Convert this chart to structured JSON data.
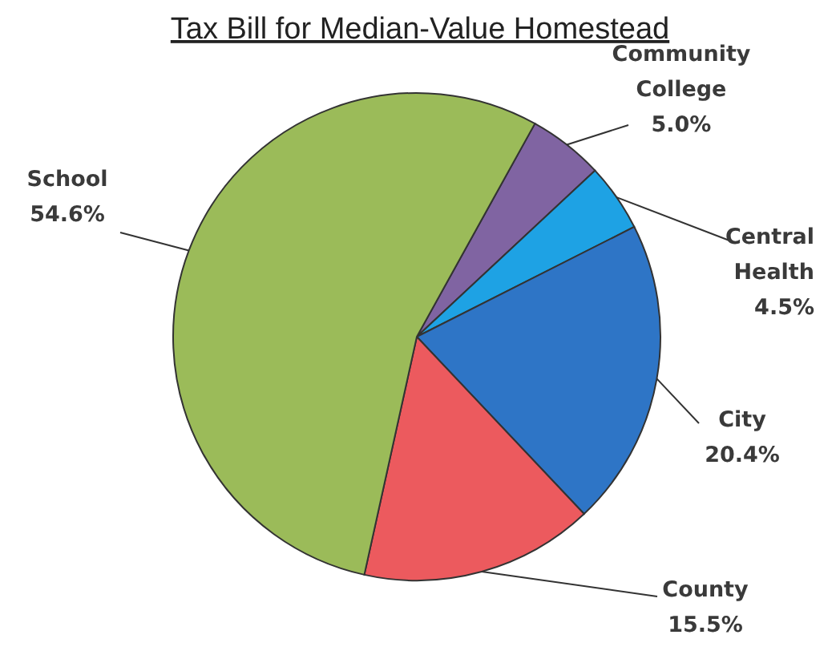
{
  "chart_data": {
    "type": "pie",
    "title": "Tax Bill for Median-Value Homestead",
    "categories": [
      "Community College",
      "Central Health",
      "City",
      "County",
      "School"
    ],
    "values": [
      5.0,
      4.5,
      20.4,
      15.5,
      54.6
    ],
    "colors": [
      "#8064a2",
      "#1ea2e4",
      "#2e75c6",
      "#ec5a5e",
      "#9bbb59"
    ],
    "value_labels": [
      "5.0%",
      "4.5%",
      "20.4%",
      "15.5%",
      "54.6%"
    ]
  }
}
